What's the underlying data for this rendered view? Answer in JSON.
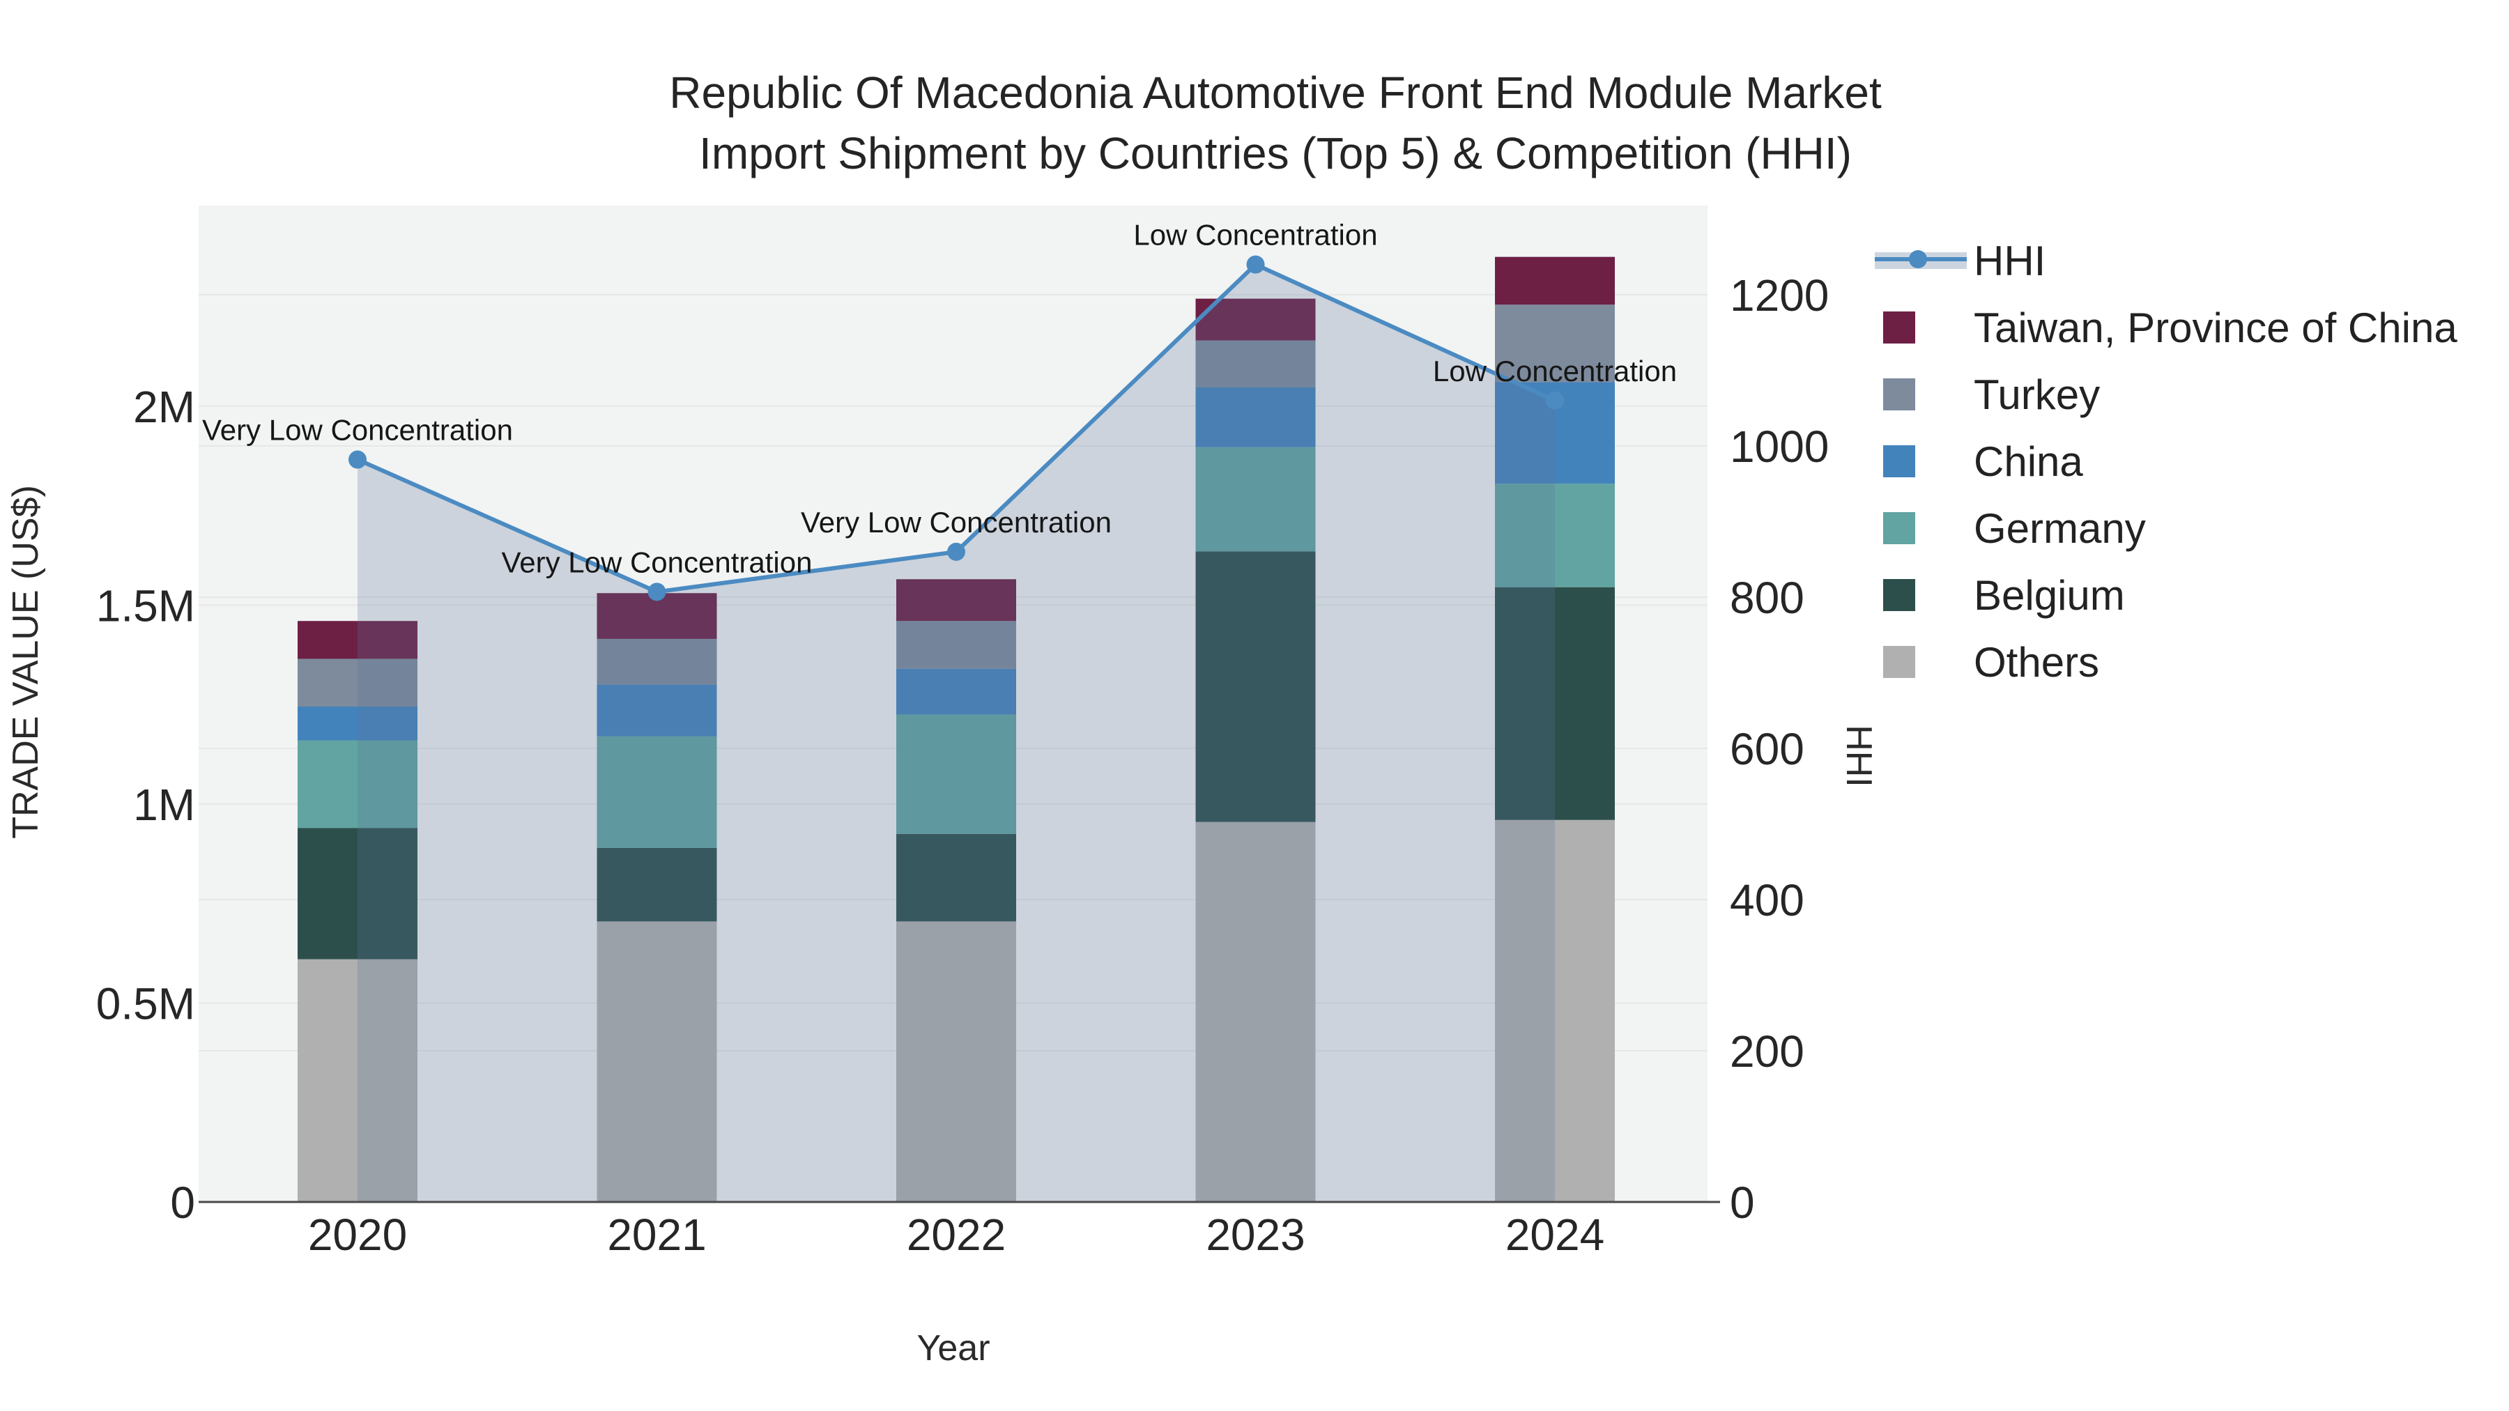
{
  "title": {
    "line1": "Republic Of Macedonia Automotive Front End Module Market",
    "line2": "Import Shipment by Countries (Top 5) & Competition (HHI)"
  },
  "chart_data": {
    "type": "combo: stacked bar (trade value) + line with area fill (HHI)",
    "x": [
      "2020",
      "2021",
      "2022",
      "2023",
      "2024"
    ],
    "xlabel": "Year",
    "ylabel_left": "TRADE VALUE (US$)",
    "ylabel_right": "HHI",
    "ylim_left": [
      0,
      2504000
    ],
    "ylim_right": [
      0,
      1318
    ],
    "grid": true,
    "legend_position": "right",
    "series": [
      {
        "name": "Others",
        "color": "#afb0af",
        "values": [
          610000,
          705000,
          705000,
          955000,
          960000
        ]
      },
      {
        "name": "Belgium",
        "color": "#2d4f4c",
        "values": [
          330000,
          185000,
          220000,
          680000,
          585000
        ]
      },
      {
        "name": "Germany",
        "color": "#61a4a2",
        "values": [
          220000,
          280000,
          300000,
          262000,
          260000
        ]
      },
      {
        "name": "China",
        "color": "#4383bb",
        "values": [
          85000,
          130000,
          115000,
          150000,
          255000
        ]
      },
      {
        "name": "Turkey",
        "color": "#7d8b9d",
        "values": [
          120000,
          115000,
          120000,
          118000,
          195000
        ]
      },
      {
        "name": "Taiwan, Province of China",
        "color": "#6d1f44",
        "values": [
          95000,
          115000,
          105000,
          105000,
          120000
        ]
      }
    ],
    "line_series": {
      "name": "HHI",
      "color": "#4b8bc2",
      "area_fill": "rgba(90,115,150,0.25)",
      "values": [
        982,
        807,
        860,
        1240,
        1060
      ]
    },
    "annotations": [
      {
        "x": "2020",
        "label": "Very Low Concentration"
      },
      {
        "x": "2021",
        "label": "Very Low Concentration"
      },
      {
        "x": "2022",
        "label": "Very Low Concentration"
      },
      {
        "x": "2023",
        "label": "Low Concentration"
      },
      {
        "x": "2024",
        "label": "Low Concentration"
      }
    ],
    "yticks_left": [
      {
        "v": 0,
        "label": "0"
      },
      {
        "v": 500000,
        "label": "0.5M"
      },
      {
        "v": 1000000,
        "label": "1M"
      },
      {
        "v": 1500000,
        "label": "1.5M"
      },
      {
        "v": 2000000,
        "label": "2M"
      }
    ],
    "yticks_right": [
      {
        "v": 0,
        "label": "0"
      },
      {
        "v": 200,
        "label": "200"
      },
      {
        "v": 400,
        "label": "400"
      },
      {
        "v": 600,
        "label": "600"
      },
      {
        "v": 800,
        "label": "800"
      },
      {
        "v": 1000,
        "label": "1000"
      },
      {
        "v": 1200,
        "label": "1200"
      }
    ],
    "legend_order": [
      "HHI",
      "Taiwan, Province of China",
      "Turkey",
      "China",
      "Germany",
      "Belgium",
      "Others"
    ],
    "plot_bg": "#f2f3f3",
    "grid_color": "#e6e7e7",
    "axis_line_color": "#4a4a4a"
  }
}
